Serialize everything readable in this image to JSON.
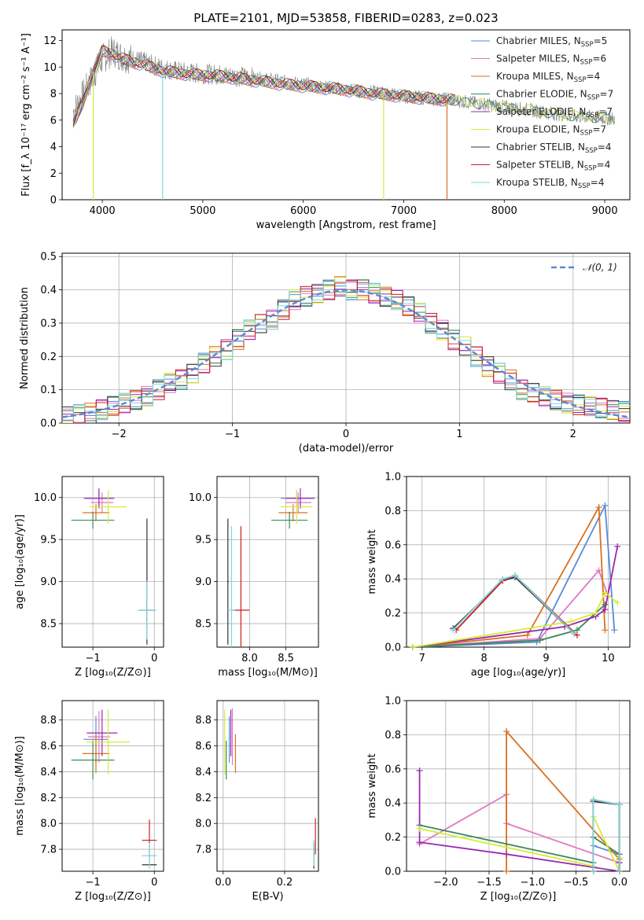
{
  "colors": {
    "chabrier_miles": "#5b8ad6",
    "salpeter_miles": "#e377c2",
    "kroupa_miles": "#d9701f",
    "chabrier_elodie": "#3a8a5a",
    "salpeter_elodie": "#9c27b0",
    "kroupa_elodie": "#d4ec3a",
    "chabrier_stelib": "#333333",
    "salpeter_stelib": "#cc1f1f",
    "kroupa_stelib": "#7ed7de",
    "model_line": "#5b8ad6",
    "grid": "#b0b0b0"
  },
  "chart_data": [
    {
      "id": "spectrum",
      "type": "line",
      "title": "PLATE=2101, MJD=53858, FIBERID=0283, z=0.023",
      "xlabel": "wavelength [Angstrom, rest frame]",
      "ylabel": "Flux [f_λ 10⁻¹⁷ erg cm⁻² s⁻¹ A⁻¹]",
      "xlim": [
        3600,
        9250
      ],
      "ylim": [
        0,
        12.8
      ],
      "xticks": [
        "4000",
        "5000",
        "6000",
        "7000",
        "8000",
        "9000"
      ],
      "yticks": [
        "0",
        "2",
        "4",
        "6",
        "8",
        "10",
        "12"
      ],
      "legend_position": "top-right",
      "legend": [
        {
          "label": "Chabrier MILES, N",
          "sub": "SSP",
          "suffix": "=5",
          "color_key": "chabrier_miles"
        },
        {
          "label": "Salpeter MILES, N",
          "sub": "SSP",
          "suffix": "=6",
          "color_key": "salpeter_miles"
        },
        {
          "label": "Kroupa MILES, N",
          "sub": "SSP",
          "suffix": "=4",
          "color_key": "kroupa_miles"
        },
        {
          "label": "Chabrier ELODIE, N",
          "sub": "SSP",
          "suffix": "=7",
          "color_key": "chabrier_elodie"
        },
        {
          "label": "Salpeter ELODIE, N",
          "sub": "SSP",
          "suffix": "=7",
          "color_key": "salpeter_elodie"
        },
        {
          "label": "Kroupa ELODIE, N",
          "sub": "SSP",
          "suffix": "=7",
          "color_key": "kroupa_elodie"
        },
        {
          "label": "Chabrier STELIB, N",
          "sub": "SSP",
          "suffix": "=4",
          "color_key": "chabrier_stelib"
        },
        {
          "label": "Salpeter STELIB, N",
          "sub": "SSP",
          "suffix": "=4",
          "color_key": "salpeter_stelib"
        },
        {
          "label": "Kroupa STELIB, N",
          "sub": "SSP",
          "suffix": "=4",
          "color_key": "kroupa_stelib"
        }
      ],
      "observed_continuum": {
        "x": [
          3700,
          3800,
          3900,
          4000,
          4100,
          4200,
          4400,
          4600,
          4800,
          5000,
          5200,
          5500,
          5800,
          6100,
          6400,
          6700,
          7000,
          7300,
          7500,
          7700,
          8000,
          8300,
          8500,
          8700,
          8900,
          9100
        ],
        "y": [
          6.5,
          7.8,
          9.2,
          10.6,
          11.2,
          10.8,
          10.4,
          9.9,
          9.6,
          9.5,
          9.4,
          9.2,
          8.9,
          8.6,
          8.3,
          8.1,
          7.8,
          7.6,
          7.5,
          7.3,
          7.0,
          6.7,
          6.5,
          6.3,
          6.2,
          6.1
        ]
      },
      "model_continuum": {
        "x": [
          3700,
          3800,
          3900,
          4000,
          4100,
          4200,
          4400,
          4600,
          4800,
          5000,
          5200,
          5500,
          5800,
          6100,
          6400,
          6700,
          7000,
          7300,
          7500
        ],
        "y": [
          5.5,
          7.2,
          9.5,
          11.2,
          11.0,
          10.6,
          10.2,
          9.7,
          9.5,
          9.4,
          9.3,
          9.0,
          8.7,
          8.5,
          8.3,
          8.0,
          7.8,
          7.6,
          7.5
        ]
      },
      "absorption_dips": [
        {
          "x": 3910,
          "color_key": "kroupa_elodie",
          "to": 0
        },
        {
          "x": 4600,
          "color_key": "kroupa_stelib",
          "to": 0
        },
        {
          "x": 6800,
          "color_key": "kroupa_elodie",
          "to": 0
        },
        {
          "x": 7430,
          "color_key": "kroupa_miles",
          "to": 0
        }
      ]
    },
    {
      "id": "residuals",
      "type": "line",
      "xlabel": "(data-model)/error",
      "ylabel": "Normed distribution",
      "xlim": [
        -2.5,
        2.5
      ],
      "ylim": [
        0,
        0.51
      ],
      "xticks": [
        "−2",
        "−1",
        "0",
        "1",
        "2"
      ],
      "yticks": [
        "0.0",
        "0.1",
        "0.2",
        "0.3",
        "0.4",
        "0.5"
      ],
      "legend_position": "top-right",
      "legend": [
        {
          "label": "𝒩(0, 1)",
          "color_key": "model_line"
        }
      ],
      "histogram_bins": [
        -2.5,
        -2.4,
        -2.3,
        -2.2,
        -2.1,
        -2.0,
        -1.9,
        -1.8,
        -1.7,
        -1.6,
        -1.5,
        -1.4,
        -1.3,
        -1.2,
        -1.1,
        -1.0,
        -0.9,
        -0.8,
        -0.7,
        -0.6,
        -0.5,
        -0.4,
        -0.3,
        -0.2,
        -0.1,
        0.0,
        0.1,
        0.2,
        0.3,
        0.4,
        0.5,
        0.6,
        0.7,
        0.8,
        0.9,
        1.0,
        1.1,
        1.2,
        1.3,
        1.4,
        1.5,
        1.6,
        1.7,
        1.8,
        1.9,
        2.0,
        2.1,
        2.2,
        2.3,
        2.4,
        2.5
      ],
      "histogram_base": [
        0.02,
        0.025,
        0.03,
        0.04,
        0.05,
        0.06,
        0.07,
        0.08,
        0.1,
        0.12,
        0.13,
        0.15,
        0.18,
        0.2,
        0.22,
        0.25,
        0.28,
        0.3,
        0.31,
        0.34,
        0.37,
        0.38,
        0.39,
        0.4,
        0.41,
        0.4,
        0.4,
        0.39,
        0.38,
        0.37,
        0.35,
        0.33,
        0.3,
        0.28,
        0.25,
        0.23,
        0.2,
        0.17,
        0.15,
        0.13,
        0.1,
        0.09,
        0.08,
        0.07,
        0.06,
        0.055,
        0.05,
        0.045,
        0.04,
        0.035
      ],
      "normal_curve": {
        "mean": 0,
        "sigma": 1
      }
    },
    {
      "id": "age_vs_Z",
      "type": "scatter",
      "xlabel": "Z [log₁₀(Z/Z⊙)]",
      "ylabel": "age  [log₁₀(age/yr)]",
      "xlim": [
        -1.5,
        0.15
      ],
      "ylim": [
        8.22,
        10.25
      ],
      "xticks": [
        "−1",
        "0"
      ],
      "yticks": [
        "8.5",
        "9.0",
        "9.5",
        "10.0"
      ],
      "points": [
        {
          "x": -0.9,
          "y": 9.99,
          "xerr": 0.22,
          "yerr": 0.1,
          "color_key": "chabrier_miles"
        },
        {
          "x": -0.85,
          "y": 9.94,
          "xerr": 0.18,
          "yerr": 0.12,
          "color_key": "salpeter_miles"
        },
        {
          "x": -0.95,
          "y": 9.82,
          "xerr": 0.22,
          "yerr": 0.1,
          "color_key": "kroupa_miles"
        },
        {
          "x": -1.0,
          "y": 9.73,
          "xerr": 0.35,
          "yerr": 0.1,
          "color_key": "chabrier_elodie"
        },
        {
          "x": -0.9,
          "y": 9.99,
          "xerr": 0.25,
          "yerr": 0.12,
          "color_key": "salpeter_elodie"
        },
        {
          "x": -0.75,
          "y": 9.89,
          "xerr": 0.3,
          "yerr": 0.2,
          "color_key": "kroupa_elodie"
        },
        {
          "x": -0.12,
          "y": 9.0,
          "xerr": 0.01,
          "yerr": 0.75,
          "color_key": "chabrier_stelib"
        },
        {
          "x": -0.12,
          "y": 8.66,
          "xerr": 0.12,
          "yerr": 0.12,
          "color_key": "salpeter_stelib"
        },
        {
          "x": -0.12,
          "y": 8.66,
          "xerr": 0.15,
          "yerr": 0.35,
          "color_key": "kroupa_stelib"
        }
      ]
    },
    {
      "id": "age_vs_mass",
      "type": "scatter",
      "xlabel": "mass [log₁₀(M/M⊙)]",
      "xlim": [
        7.55,
        8.95
      ],
      "ylim": [
        8.22,
        10.25
      ],
      "xticks": [
        "8.0",
        "8.5"
      ],
      "yticks": [
        "8.5",
        "9.0",
        "9.5",
        "10.0"
      ],
      "points": [
        {
          "x": 8.65,
          "y": 9.99,
          "xerr": 0.22,
          "yerr": 0.1,
          "color_key": "chabrier_miles"
        },
        {
          "x": 8.67,
          "y": 9.94,
          "xerr": 0.18,
          "yerr": 0.12,
          "color_key": "salpeter_miles"
        },
        {
          "x": 8.6,
          "y": 9.82,
          "xerr": 0.2,
          "yerr": 0.1,
          "color_key": "kroupa_miles"
        },
        {
          "x": 8.55,
          "y": 9.73,
          "xerr": 0.25,
          "yerr": 0.1,
          "color_key": "chabrier_elodie"
        },
        {
          "x": 8.7,
          "y": 9.99,
          "xerr": 0.2,
          "yerr": 0.12,
          "color_key": "salpeter_elodie"
        },
        {
          "x": 8.65,
          "y": 9.89,
          "xerr": 0.22,
          "yerr": 0.2,
          "color_key": "kroupa_elodie"
        },
        {
          "x": 7.7,
          "y": 9.0,
          "xerr": 0.01,
          "yerr": 0.75,
          "color_key": "chabrier_stelib"
        },
        {
          "x": 7.88,
          "y": 8.66,
          "xerr": 0.12,
          "yerr": 1.0,
          "color_key": "salpeter_stelib"
        },
        {
          "x": 7.75,
          "y": 8.66,
          "xerr": 0.05,
          "yerr": 1.0,
          "color_key": "kroupa_stelib"
        }
      ]
    },
    {
      "id": "mass_weight_vs_age",
      "type": "line",
      "xlabel": "age  [log₁₀(age/yr)]",
      "ylabel": "mass weight",
      "xlim": [
        6.75,
        10.35
      ],
      "ylim": [
        0,
        1.0
      ],
      "xticks": [
        "7",
        "8",
        "9",
        "10"
      ],
      "yticks": [
        "0.0",
        "0.2",
        "0.4",
        "0.6",
        "0.8",
        "1.0"
      ],
      "series": [
        {
          "color_key": "chabrier_miles",
          "x": [
            6.85,
            8.85,
            9.95,
            10.1
          ],
          "y": [
            0.0,
            0.03,
            0.83,
            0.1
          ]
        },
        {
          "color_key": "salpeter_miles",
          "x": [
            6.85,
            8.9,
            9.85,
            10.0
          ],
          "y": [
            0.0,
            0.05,
            0.45,
            0.3
          ]
        },
        {
          "color_key": "kroupa_miles",
          "x": [
            6.85,
            8.7,
            9.85,
            9.95
          ],
          "y": [
            0.0,
            0.07,
            0.82,
            0.1
          ]
        },
        {
          "color_key": "chabrier_elodie",
          "x": [
            6.85,
            8.9,
            9.5,
            9.8,
            9.95
          ],
          "y": [
            0.0,
            0.04,
            0.1,
            0.2,
            0.25
          ]
        },
        {
          "color_key": "salpeter_elodie",
          "x": [
            6.85,
            9.3,
            9.8,
            9.95,
            10.15
          ],
          "y": [
            0.0,
            0.12,
            0.18,
            0.22,
            0.59
          ]
        },
        {
          "color_key": "kroupa_elodie",
          "x": [
            6.85,
            9.4,
            9.8,
            9.95,
            10.15
          ],
          "y": [
            0.0,
            0.15,
            0.2,
            0.32,
            0.26
          ]
        },
        {
          "color_key": "chabrier_stelib",
          "x": [
            7.5,
            8.3,
            8.5,
            9.45
          ],
          "y": [
            0.11,
            0.39,
            0.41,
            0.08
          ]
        },
        {
          "color_key": "salpeter_stelib",
          "x": [
            7.55,
            8.3,
            8.5,
            9.5
          ],
          "y": [
            0.1,
            0.39,
            0.42,
            0.07
          ]
        },
        {
          "color_key": "kroupa_stelib",
          "x": [
            7.5,
            8.3,
            8.5,
            9.45
          ],
          "y": [
            0.1,
            0.4,
            0.42,
            0.08
          ]
        }
      ]
    },
    {
      "id": "mass_vs_Z",
      "type": "scatter",
      "xlabel": "Z [log₁₀(Z/Z⊙)]",
      "ylabel": "mass [log₁₀(M/M⊙)]",
      "xlim": [
        -1.5,
        0.15
      ],
      "ylim": [
        7.63,
        8.95
      ],
      "xticks": [
        "−1",
        "0"
      ],
      "yticks": [
        "7.8",
        "8.0",
        "8.2",
        "8.4",
        "8.6",
        "8.8"
      ],
      "points": [
        {
          "x": -0.95,
          "y": 8.65,
          "xerr": 0.2,
          "yerr": 0.18,
          "color_key": "chabrier_miles"
        },
        {
          "x": -0.9,
          "y": 8.67,
          "xerr": 0.18,
          "yerr": 0.2,
          "color_key": "salpeter_miles"
        },
        {
          "x": -0.95,
          "y": 8.54,
          "xerr": 0.22,
          "yerr": 0.15,
          "color_key": "kroupa_miles"
        },
        {
          "x": -1.0,
          "y": 8.49,
          "xerr": 0.35,
          "yerr": 0.15,
          "color_key": "chabrier_elodie"
        },
        {
          "x": -0.85,
          "y": 8.7,
          "xerr": 0.25,
          "yerr": 0.18,
          "color_key": "salpeter_elodie"
        },
        {
          "x": -0.75,
          "y": 8.63,
          "xerr": 0.35,
          "yerr": 0.25,
          "color_key": "kroupa_elodie"
        },
        {
          "x": -0.08,
          "y": 7.68,
          "xerr": 0.12,
          "yerr": 0.0,
          "color_key": "chabrier_stelib"
        },
        {
          "x": -0.08,
          "y": 7.87,
          "xerr": 0.12,
          "yerr": 0.16,
          "color_key": "salpeter_stelib"
        },
        {
          "x": -0.08,
          "y": 7.75,
          "xerr": 0.12,
          "yerr": 0.1,
          "color_key": "kroupa_stelib"
        }
      ]
    },
    {
      "id": "mass_vs_EBV",
      "type": "scatter",
      "xlabel": "E(B-V)",
      "xlim": [
        -0.02,
        0.31
      ],
      "ylim": [
        7.63,
        8.95
      ],
      "xticks": [
        "0.0",
        "0.2"
      ],
      "yticks": [
        "7.8",
        "8.0",
        "8.2",
        "8.4",
        "8.6",
        "8.8"
      ],
      "points": [
        {
          "x": 0.02,
          "y": 8.65,
          "yerr": 0.18,
          "color_key": "chabrier_miles"
        },
        {
          "x": 0.03,
          "y": 8.67,
          "yerr": 0.22,
          "color_key": "salpeter_miles"
        },
        {
          "x": 0.04,
          "y": 8.54,
          "yerr": 0.15,
          "color_key": "kroupa_miles"
        },
        {
          "x": 0.01,
          "y": 8.49,
          "yerr": 0.15,
          "color_key": "chabrier_elodie"
        },
        {
          "x": 0.025,
          "y": 8.7,
          "yerr": 0.18,
          "color_key": "salpeter_elodie"
        },
        {
          "x": 0.005,
          "y": 8.63,
          "yerr": 0.25,
          "color_key": "kroupa_elodie"
        },
        {
          "x": 0.295,
          "y": 7.75,
          "yerr": 0.1,
          "color_key": "chabrier_stelib"
        },
        {
          "x": 0.3,
          "y": 7.9,
          "yerr": 0.14,
          "color_key": "salpeter_stelib"
        },
        {
          "x": 0.295,
          "y": 7.77,
          "yerr": 0.1,
          "color_key": "kroupa_stelib"
        }
      ]
    },
    {
      "id": "mass_weight_vs_Z",
      "type": "line",
      "xlabel": "Z [log₁₀(Z/Z⊙)]",
      "ylabel": "mass weight",
      "xlim": [
        -2.45,
        0.12
      ],
      "ylim": [
        0,
        1.0
      ],
      "xticks": [
        "−2.0",
        "−1.5",
        "−1.0",
        "−0.5",
        "0.0"
      ],
      "yticks": [
        "0.0",
        "0.2",
        "0.4",
        "0.6",
        "0.8",
        "1.0"
      ],
      "series": [
        {
          "color_key": "chabrier_miles",
          "x": [
            -0.3,
            -0.3,
            0.0,
            0.0
          ],
          "y": [
            0.0,
            0.15,
            0.1,
            0.0
          ]
        },
        {
          "color_key": "salpeter_miles",
          "x": [
            -2.3,
            -1.3,
            -1.3,
            0.0,
            0.0
          ],
          "y": [
            0.16,
            0.45,
            0.28,
            0.05,
            0.0
          ]
        },
        {
          "color_key": "kroupa_miles",
          "x": [
            -1.3,
            -1.3,
            0.0,
            0.0
          ],
          "y": [
            0.0,
            0.82,
            0.07,
            0.0
          ]
        },
        {
          "color_key": "chabrier_elodie",
          "x": [
            -2.3,
            -0.3,
            -0.3,
            0.0,
            0.0
          ],
          "y": [
            0.27,
            0.05,
            0.2,
            0.1,
            0.0
          ]
        },
        {
          "color_key": "salpeter_elodie",
          "x": [
            -2.3,
            -2.3,
            -1.3,
            0.0,
            0.0
          ],
          "y": [
            0.59,
            0.17,
            0.1,
            0.0,
            0.05
          ]
        },
        {
          "color_key": "kroupa_elodie",
          "x": [
            -2.3,
            -0.3,
            -0.3,
            0.0,
            0.0
          ],
          "y": [
            0.25,
            0.03,
            0.32,
            0.0,
            0.08
          ]
        },
        {
          "color_key": "chabrier_stelib",
          "x": [
            -0.3,
            -0.3,
            0.0,
            0.0
          ],
          "y": [
            0.0,
            0.41,
            0.39,
            0.0
          ]
        },
        {
          "color_key": "salpeter_stelib",
          "x": [
            -0.3,
            -0.3,
            0.0,
            0.0
          ],
          "y": [
            0.0,
            0.42,
            0.39,
            0.0
          ]
        },
        {
          "color_key": "kroupa_stelib",
          "x": [
            -0.3,
            -0.3,
            0.0,
            0.0
          ],
          "y": [
            0.0,
            0.42,
            0.39,
            0.0
          ]
        }
      ]
    }
  ]
}
